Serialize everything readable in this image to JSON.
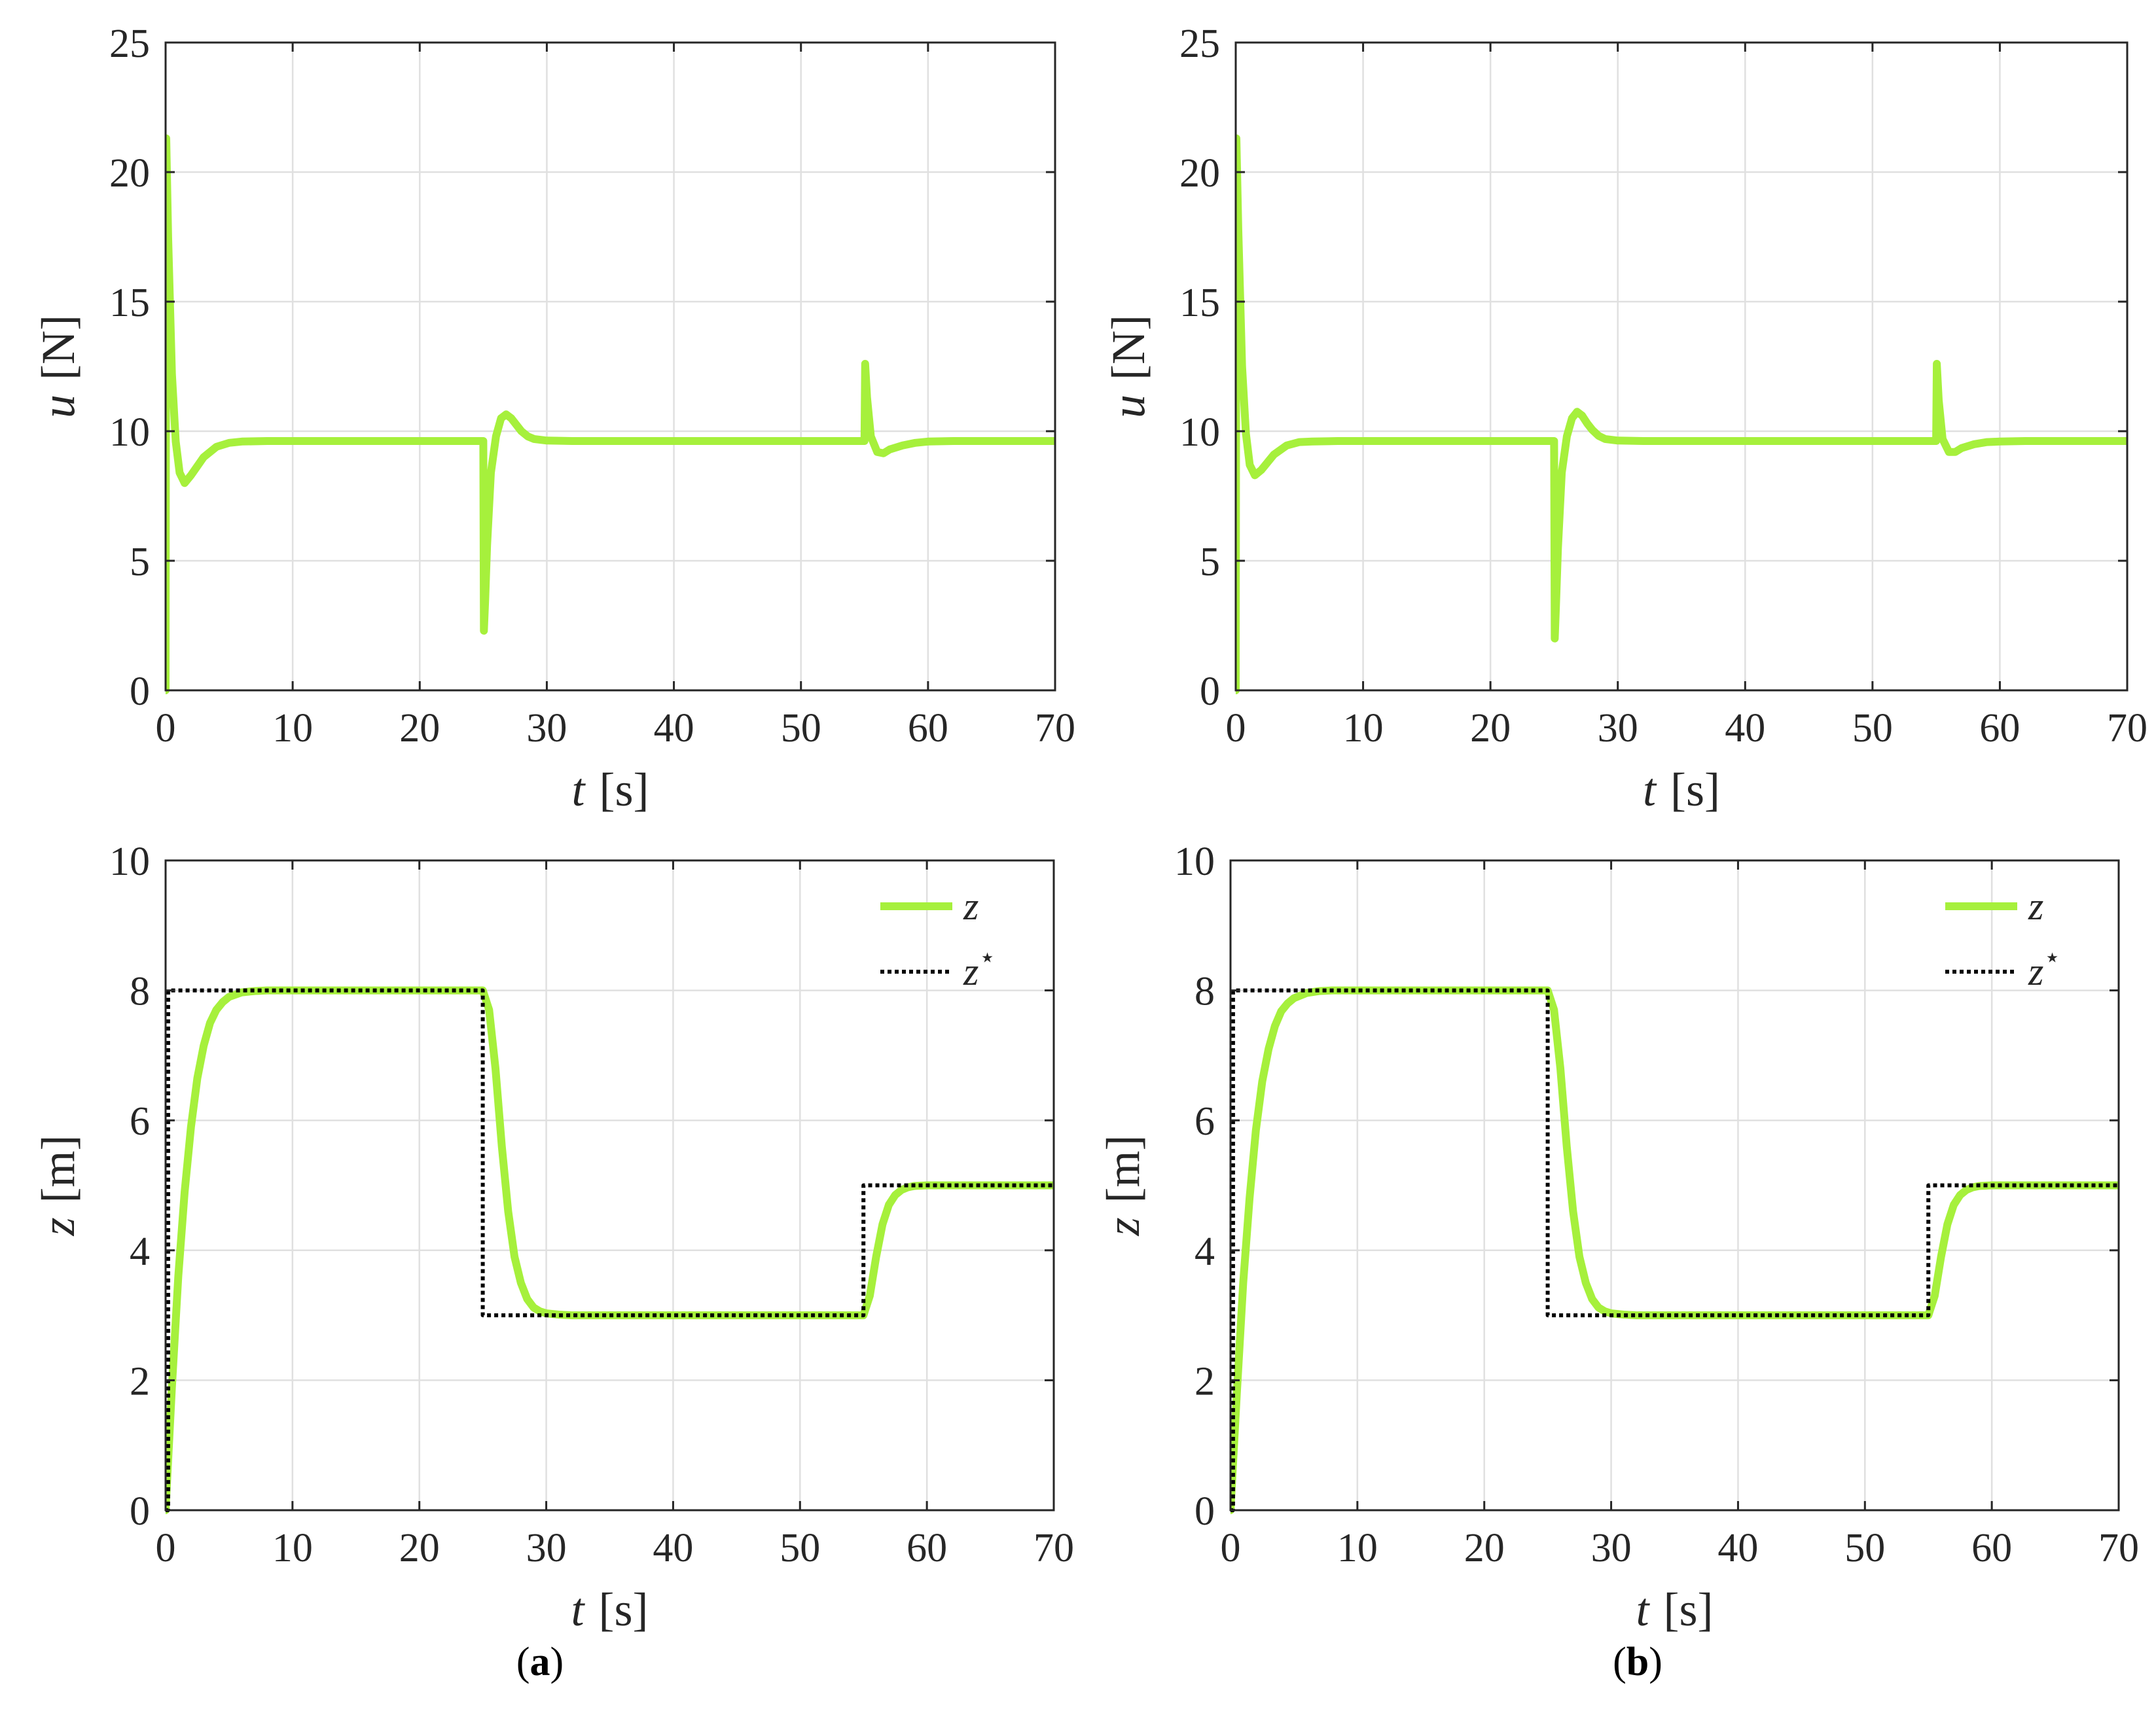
{
  "style": {
    "z_color": "#a6f03c",
    "ref_color": "#000000",
    "grid_color": "#e0e0e0",
    "axis_color": "#262626"
  },
  "panels": [
    {
      "open": "(",
      "letter": "a",
      "close": ")"
    },
    {
      "open": "(",
      "letter": "b",
      "close": ")"
    }
  ],
  "chart_data": [
    {
      "type": "line",
      "panel": "a",
      "position": "top",
      "xlabel": {
        "var": "t",
        "unit": "[s]"
      },
      "ylabel": {
        "var": "u",
        "unit": "[N]"
      },
      "xlim": [
        0,
        70
      ],
      "ylim": [
        0,
        25
      ],
      "xticks": [
        0,
        10,
        20,
        30,
        40,
        50,
        60,
        70
      ],
      "yticks": [
        0,
        5,
        10,
        15,
        20,
        25
      ],
      "grid": true,
      "legend": null,
      "series": [
        {
          "style": "solid",
          "x": [
            0,
            0.05,
            0.2,
            0.5,
            0.8,
            1.1,
            1.5,
            2,
            3,
            4,
            5,
            6,
            8,
            10,
            15,
            20,
            25,
            25.05,
            25.15,
            25.3,
            25.6,
            26,
            26.4,
            26.8,
            27.2,
            27.6,
            28,
            28.5,
            29,
            30,
            32,
            40,
            50,
            55,
            55.05,
            55.2,
            55.5,
            56,
            56.5,
            57,
            58,
            59,
            60,
            62,
            65,
            70
          ],
          "y": [
            0,
            21.3,
            17.5,
            12.2,
            9.6,
            8.4,
            8.0,
            8.3,
            9.0,
            9.4,
            9.55,
            9.6,
            9.62,
            9.62,
            9.62,
            9.62,
            9.62,
            2.3,
            3.5,
            5.6,
            8.4,
            9.8,
            10.5,
            10.65,
            10.5,
            10.25,
            10.0,
            9.8,
            9.7,
            9.64,
            9.62,
            9.62,
            9.62,
            9.62,
            12.6,
            11.3,
            9.8,
            9.2,
            9.15,
            9.3,
            9.45,
            9.55,
            9.6,
            9.62,
            9.62,
            9.62
          ]
        }
      ]
    },
    {
      "type": "line",
      "panel": "b",
      "position": "top",
      "xlabel": {
        "var": "t",
        "unit": "[s]"
      },
      "ylabel": {
        "var": "u",
        "unit": "[N]"
      },
      "xlim": [
        0,
        70
      ],
      "ylim": [
        0,
        25
      ],
      "xticks": [
        0,
        10,
        20,
        30,
        40,
        50,
        60,
        70
      ],
      "yticks": [
        0,
        5,
        10,
        15,
        20,
        25
      ],
      "grid": true,
      "legend": null,
      "series": [
        {
          "style": "solid",
          "x": [
            0,
            0.05,
            0.2,
            0.5,
            0.8,
            1.1,
            1.5,
            2,
            3,
            4,
            5,
            6,
            8,
            10,
            15,
            20,
            25,
            25.05,
            25.15,
            25.3,
            25.6,
            26,
            26.4,
            26.8,
            27.2,
            27.6,
            28,
            28.5,
            29,
            30,
            32,
            40,
            50,
            55,
            55.05,
            55.2,
            55.5,
            56,
            56.5,
            57,
            58,
            59,
            60,
            62,
            65,
            70
          ],
          "y": [
            0,
            21.3,
            17.8,
            12.5,
            9.9,
            8.7,
            8.3,
            8.5,
            9.1,
            9.45,
            9.58,
            9.6,
            9.62,
            9.62,
            9.62,
            9.62,
            9.62,
            2.0,
            3.3,
            5.5,
            8.4,
            9.8,
            10.5,
            10.75,
            10.6,
            10.3,
            10.05,
            9.82,
            9.7,
            9.64,
            9.62,
            9.62,
            9.62,
            9.62,
            12.6,
            11.2,
            9.7,
            9.2,
            9.2,
            9.35,
            9.5,
            9.58,
            9.6,
            9.62,
            9.62,
            9.62
          ]
        }
      ]
    },
    {
      "type": "line",
      "panel": "a",
      "position": "bottom",
      "xlabel": {
        "var": "t",
        "unit": "[s]"
      },
      "ylabel": {
        "var": "z",
        "unit": "[m]"
      },
      "xlim": [
        0,
        70
      ],
      "ylim": [
        0,
        10
      ],
      "xticks": [
        0,
        10,
        20,
        30,
        40,
        50,
        60,
        70
      ],
      "yticks": [
        0,
        2,
        4,
        6,
        8,
        10
      ],
      "grid": true,
      "legend": {
        "placement": "top-right",
        "entries": [
          {
            "label": "z",
            "sup": ""
          },
          {
            "label": "z",
            "sup": "⋆"
          }
        ]
      },
      "series": [
        {
          "style": "solid",
          "x": [
            0,
            0.5,
            1,
            1.5,
            2,
            2.5,
            3,
            3.5,
            4,
            4.5,
            5,
            6,
            7,
            8,
            10,
            25,
            25.5,
            26,
            26.5,
            27,
            27.5,
            28,
            28.5,
            29,
            29.5,
            30,
            31,
            32,
            55,
            55.5,
            56,
            56.5,
            57,
            57.5,
            58,
            58.5,
            59,
            60,
            61,
            70
          ],
          "y": [
            0,
            1.9,
            3.6,
            4.9,
            5.9,
            6.65,
            7.15,
            7.5,
            7.7,
            7.82,
            7.9,
            7.97,
            7.99,
            8,
            8,
            8,
            7.7,
            6.8,
            5.6,
            4.6,
            3.9,
            3.5,
            3.25,
            3.12,
            3.06,
            3.03,
            3.01,
            3,
            3,
            3.3,
            3.9,
            4.4,
            4.7,
            4.85,
            4.93,
            4.97,
            4.99,
            5,
            5,
            5
          ]
        },
        {
          "style": "dotted",
          "x": [
            0,
            0.2,
            0.2,
            25,
            25,
            55,
            55,
            70
          ],
          "y": [
            0,
            0,
            8,
            8,
            3,
            3,
            5,
            5
          ]
        }
      ]
    },
    {
      "type": "line",
      "panel": "b",
      "position": "bottom",
      "xlabel": {
        "var": "t",
        "unit": "[s]"
      },
      "ylabel": {
        "var": "z",
        "unit": "[m]"
      },
      "xlim": [
        0,
        70
      ],
      "ylim": [
        0,
        10
      ],
      "xticks": [
        0,
        10,
        20,
        30,
        40,
        50,
        60,
        70
      ],
      "yticks": [
        0,
        2,
        4,
        6,
        8,
        10
      ],
      "grid": true,
      "legend": {
        "placement": "top-right",
        "entries": [
          {
            "label": "z",
            "sup": ""
          },
          {
            "label": "z",
            "sup": "⋆"
          }
        ]
      },
      "series": [
        {
          "style": "solid",
          "x": [
            0,
            0.5,
            1,
            1.5,
            2,
            2.5,
            3,
            3.5,
            4,
            4.5,
            5,
            6,
            7,
            8,
            10,
            25,
            25.5,
            26,
            26.5,
            27,
            27.5,
            28,
            28.5,
            29,
            29.5,
            30,
            31,
            32,
            55,
            55.5,
            56,
            56.5,
            57,
            57.5,
            58,
            58.5,
            59,
            60,
            61,
            70
          ],
          "y": [
            0,
            1.8,
            3.5,
            4.8,
            5.85,
            6.6,
            7.1,
            7.45,
            7.68,
            7.8,
            7.88,
            7.96,
            7.99,
            8,
            8,
            8,
            7.7,
            6.8,
            5.6,
            4.6,
            3.9,
            3.5,
            3.25,
            3.12,
            3.06,
            3.03,
            3.01,
            3,
            3,
            3.3,
            3.9,
            4.4,
            4.7,
            4.85,
            4.93,
            4.97,
            4.99,
            5,
            5,
            5
          ]
        },
        {
          "style": "dotted",
          "x": [
            0,
            0.2,
            0.2,
            25,
            25,
            55,
            55,
            70
          ],
          "y": [
            0,
            0,
            8,
            8,
            3,
            3,
            5,
            5
          ]
        }
      ]
    }
  ]
}
